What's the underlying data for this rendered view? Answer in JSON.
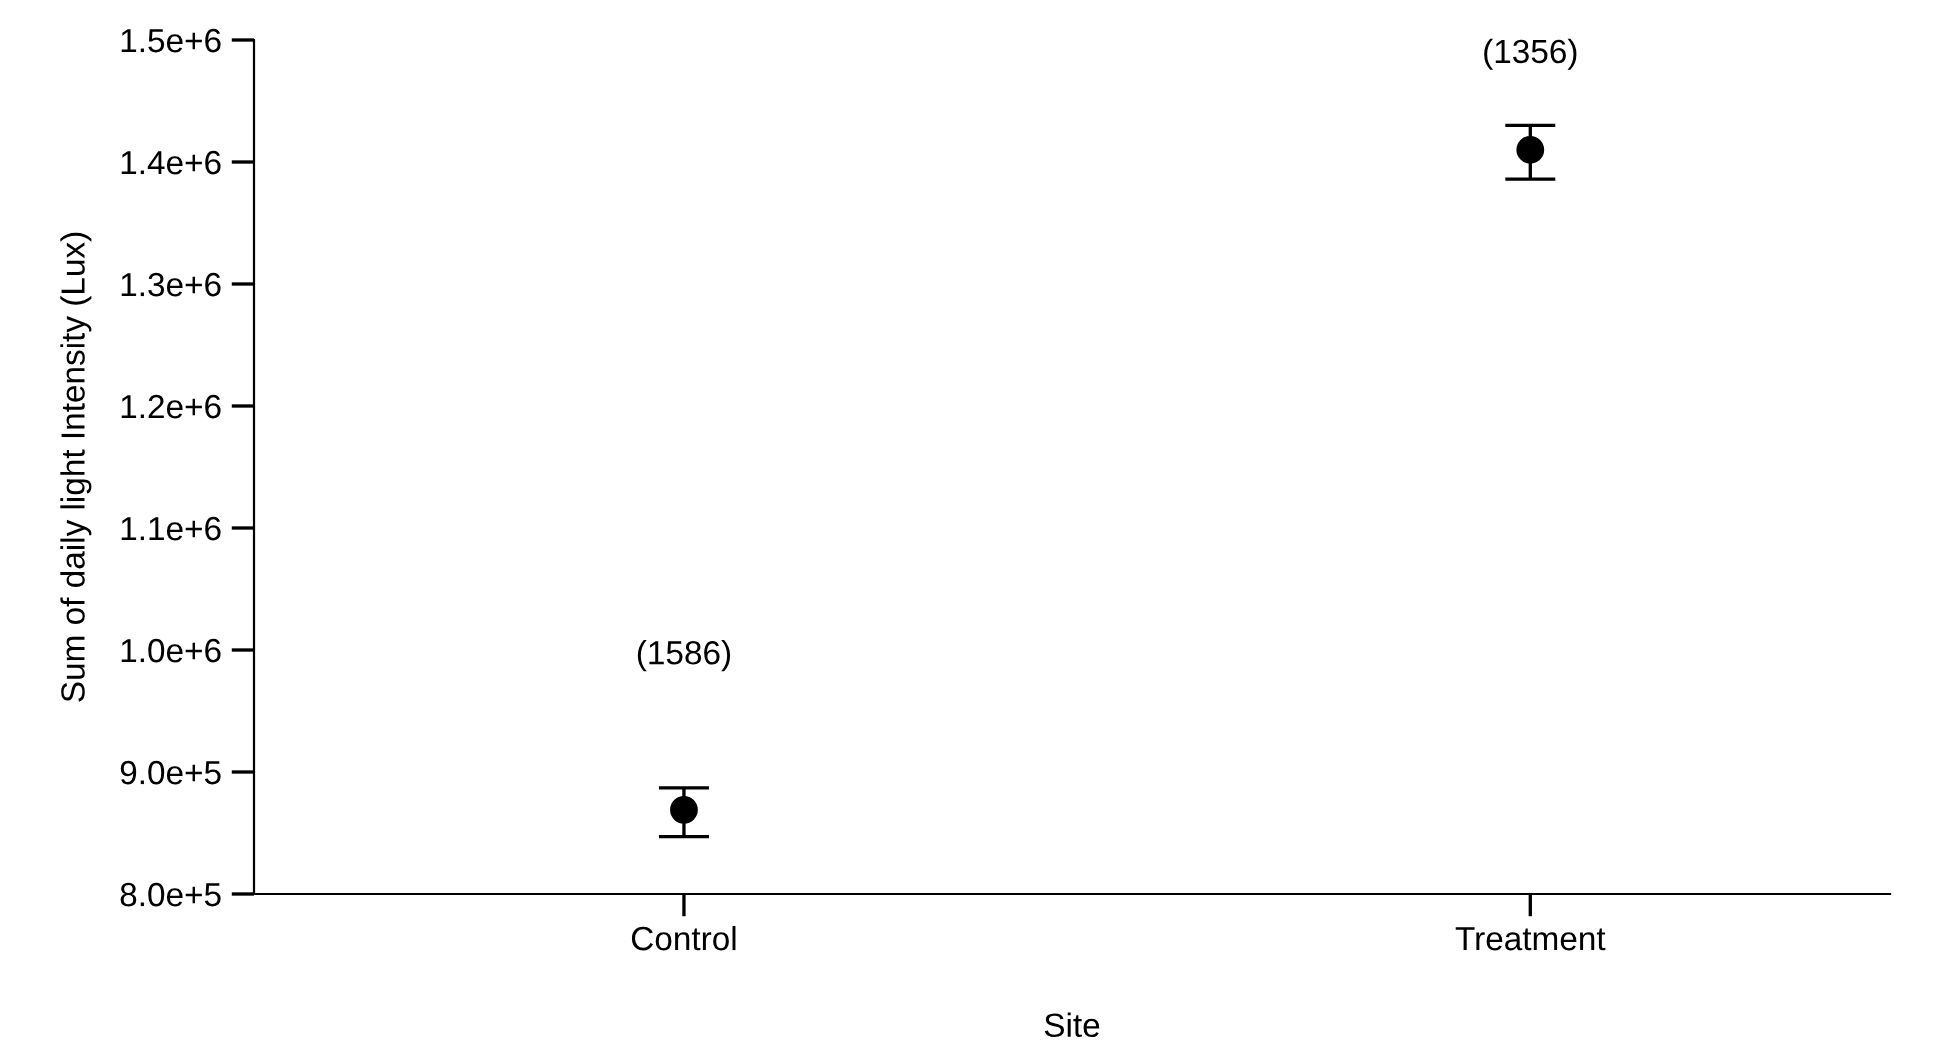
{
  "chart_data": {
    "type": "scatter",
    "xlabel": "Site",
    "ylabel": "Sum of daily light Intensity (Lux)",
    "categories": [
      "Control",
      "Treatment"
    ],
    "series": [
      {
        "color": "#000000",
        "values": [
          869000,
          1410000
        ],
        "errors": [
          [
            847000,
            887000
          ],
          [
            1386000,
            1430000
          ]
        ]
      }
    ],
    "marker": "circle",
    "ylim": [
      800000,
      1500000
    ],
    "yticks": [
      {
        "value": 800000,
        "label": "8.0e+5"
      },
      {
        "value": 900000,
        "label": "9.0e+5"
      },
      {
        "value": 1000000,
        "label": "1.0e+6"
      },
      {
        "value": 1100000,
        "label": "1.1e+6"
      },
      {
        "value": 1200000,
        "label": "1.2e+6"
      },
      {
        "value": 1300000,
        "label": "1.3e+6"
      },
      {
        "value": 1400000,
        "label": "1.4e+6"
      },
      {
        "value": 1500000,
        "label": "1.5e+6"
      }
    ],
    "annotations": [
      "(1586)",
      "(1356)"
    ],
    "grid": false,
    "legend": false
  }
}
